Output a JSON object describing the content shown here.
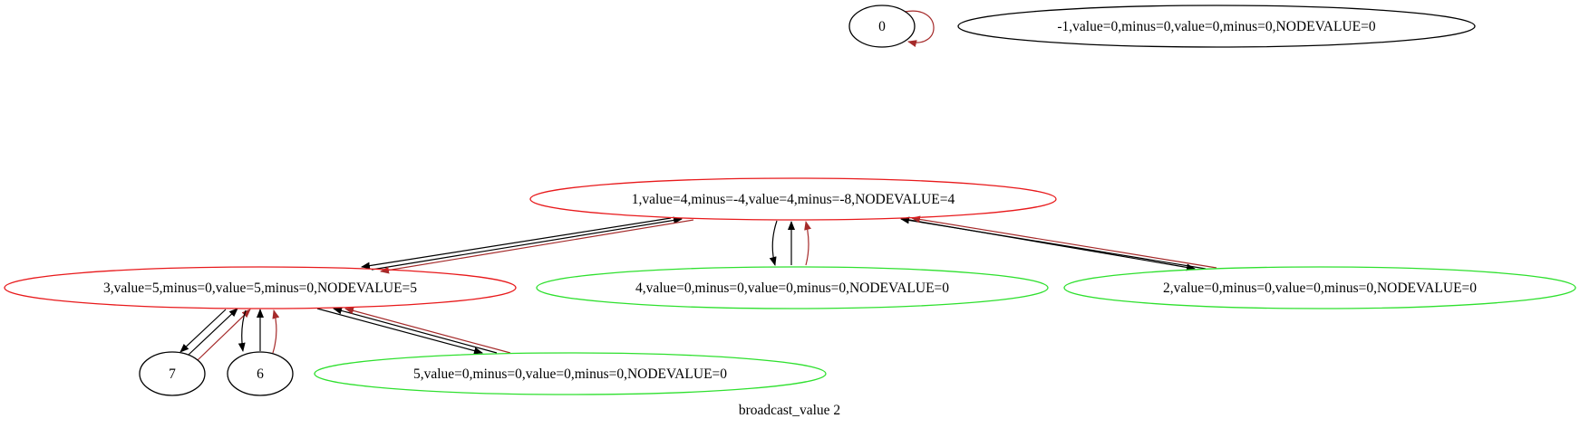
{
  "diagram": {
    "caption": "broadcast_value 2",
    "nodes": [
      {
        "id": "n0",
        "label": "0",
        "color": "#000000"
      },
      {
        "id": "nm1",
        "label": "-1,value=0,minus=0,value=0,minus=0,NODEVALUE=0",
        "color": "#000000"
      },
      {
        "id": "n1",
        "label": "1,value=4,minus=-4,value=4,minus=-8,NODEVALUE=4",
        "color": "#e8191b"
      },
      {
        "id": "n3",
        "label": "3,value=5,minus=0,value=5,minus=0,NODEVALUE=5",
        "color": "#e8191b"
      },
      {
        "id": "n4",
        "label": "4,value=0,minus=0,value=0,minus=0,NODEVALUE=0",
        "color": "#2ee02e"
      },
      {
        "id": "n2",
        "label": "2,value=0,minus=0,value=0,minus=0,NODEVALUE=0",
        "color": "#2ee02e"
      },
      {
        "id": "n5",
        "label": "5,value=0,minus=0,value=0,minus=0,NODEVALUE=0",
        "color": "#2ee02e"
      },
      {
        "id": "n7",
        "label": "7",
        "color": "#000000"
      },
      {
        "id": "n6",
        "label": "6",
        "color": "#000000"
      }
    ],
    "edges": [
      {
        "id": "e-0-0",
        "from": "0",
        "to": "0",
        "color": "#a52a2a"
      },
      {
        "id": "e-1-3-a",
        "from": "1",
        "to": "3",
        "color": "#000000"
      },
      {
        "id": "e-3-1",
        "from": "3",
        "to": "1",
        "color": "#000000"
      },
      {
        "id": "e-1-3-b",
        "from": "1",
        "to": "3",
        "color": "#a52a2a"
      },
      {
        "id": "e-1-4",
        "from": "1",
        "to": "4",
        "color": "#000000"
      },
      {
        "id": "e-4-1-a",
        "from": "4",
        "to": "1",
        "color": "#000000"
      },
      {
        "id": "e-4-1-b",
        "from": "4",
        "to": "1",
        "color": "#a52a2a"
      },
      {
        "id": "e-1-2",
        "from": "1",
        "to": "2",
        "color": "#000000"
      },
      {
        "id": "e-2-1-a",
        "from": "2",
        "to": "1",
        "color": "#000000"
      },
      {
        "id": "e-2-1-b",
        "from": "2",
        "to": "1",
        "color": "#a52a2a"
      },
      {
        "id": "e-3-7",
        "from": "3",
        "to": "7",
        "color": "#000000"
      },
      {
        "id": "e-7-3-a",
        "from": "7",
        "to": "3",
        "color": "#000000"
      },
      {
        "id": "e-7-3-b",
        "from": "7",
        "to": "3",
        "color": "#a52a2a"
      },
      {
        "id": "e-3-6",
        "from": "3",
        "to": "6",
        "color": "#000000"
      },
      {
        "id": "e-6-3-a",
        "from": "6",
        "to": "3",
        "color": "#000000"
      },
      {
        "id": "e-6-3-b",
        "from": "6",
        "to": "3",
        "color": "#a52a2a"
      },
      {
        "id": "e-3-5",
        "from": "3",
        "to": "5",
        "color": "#000000"
      },
      {
        "id": "e-5-3-a",
        "from": "5",
        "to": "3",
        "color": "#000000"
      },
      {
        "id": "e-5-3-b",
        "from": "5",
        "to": "3",
        "color": "#a52a2a"
      }
    ]
  }
}
